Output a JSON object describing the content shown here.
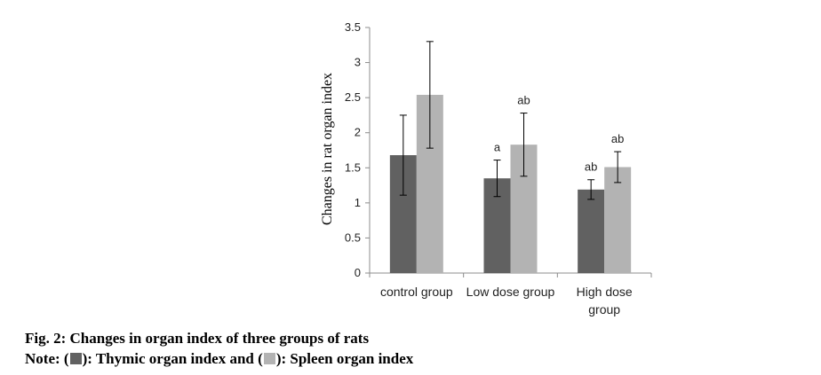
{
  "chart_data": {
    "type": "bar",
    "title": "Fig. 2: Changes in organ index of three groups of rats",
    "ylabel": "Changes in rat organ index",
    "xlabel": "",
    "ylim": [
      0,
      3.5
    ],
    "yticks": [
      "0",
      "0.5",
      "1",
      "1.5",
      "2",
      "2.5",
      "3",
      "3.5"
    ],
    "categories": [
      [
        "control group"
      ],
      [
        "Low dose group"
      ],
      [
        "High dose",
        "group"
      ]
    ],
    "series": [
      {
        "name": "Thymic organ index",
        "color": "#616161",
        "values": [
          1.68,
          1.35,
          1.19
        ],
        "errors": [
          0.57,
          0.26,
          0.14
        ],
        "labels": [
          "",
          "a",
          "ab"
        ]
      },
      {
        "name": "Spleen organ index",
        "color": "#b3b3b3",
        "values": [
          2.54,
          1.83,
          1.51
        ],
        "errors": [
          0.76,
          0.45,
          0.22
        ],
        "labels": [
          "",
          "ab",
          "ab"
        ]
      }
    ]
  },
  "caption": {
    "line1": "Fig. 2: Changes in organ index of three groups of rats",
    "note_prefix": "Note: (",
    "note_mid": "): Thymic organ index and (",
    "note_suffix": "): Spleen organ index"
  }
}
